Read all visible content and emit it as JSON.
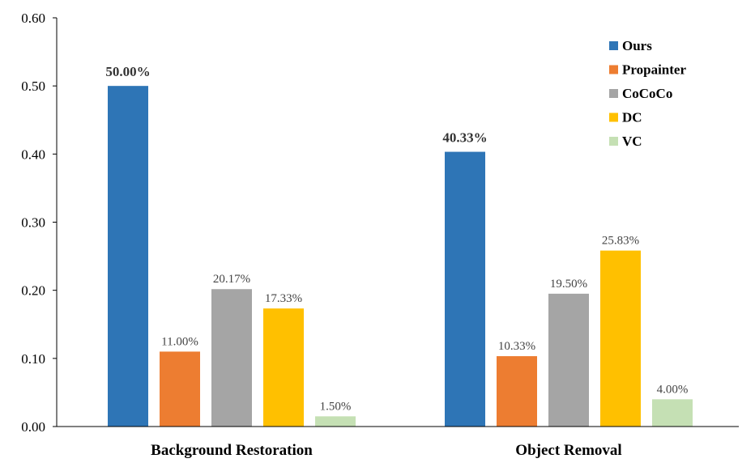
{
  "chart_data": {
    "type": "bar",
    "categories": [
      "Background Restoration",
      "Object Removal"
    ],
    "series": [
      {
        "name": "Ours",
        "color": "#2E75B6",
        "values": [
          0.5,
          0.4033
        ],
        "labels": [
          "50.00%",
          "40.33%"
        ],
        "label_bold": true
      },
      {
        "name": "Propainter",
        "color": "#ED7D31",
        "values": [
          0.11,
          0.1033
        ],
        "labels": [
          "11.00%",
          "10.33%"
        ],
        "label_bold": false
      },
      {
        "name": "CoCoCo",
        "color": "#A5A5A5",
        "values": [
          0.2017,
          0.195
        ],
        "labels": [
          "20.17%",
          "19.50%"
        ],
        "label_bold": false
      },
      {
        "name": "DC",
        "color": "#FFC000",
        "values": [
          0.1733,
          0.2583
        ],
        "labels": [
          "17.33%",
          "25.83%"
        ],
        "label_bold": false
      },
      {
        "name": "VC",
        "color": "#C5E0B4",
        "values": [
          0.015,
          0.04
        ],
        "labels": [
          "1.50%",
          "4.00%"
        ],
        "label_bold": false
      }
    ],
    "yticks": [
      "0.00",
      "0.10",
      "0.20",
      "0.30",
      "0.40",
      "0.50",
      "0.60"
    ],
    "ylim": [
      0,
      0.6
    ],
    "grid": false,
    "legend_position": "top-right"
  }
}
